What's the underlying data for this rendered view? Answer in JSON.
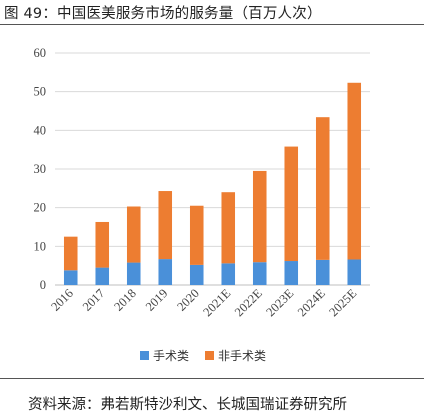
{
  "header": {
    "title": "图 49：中国医美服务市场的服务量（百万人次）"
  },
  "footer": {
    "source": "资料来源：弗若斯特沙利文、长城国瑞证券研究所"
  },
  "chart_data": {
    "type": "bar",
    "stacked": true,
    "title": "",
    "xlabel": "",
    "ylabel": "",
    "ylim": [
      0,
      60
    ],
    "yticks": [
      0,
      10,
      20,
      30,
      40,
      50,
      60
    ],
    "grid": true,
    "legend_position": "bottom",
    "categories": [
      "2016",
      "2017",
      "2018",
      "2019",
      "2020",
      "2021E",
      "2022E",
      "2023E",
      "2024E",
      "2025E"
    ],
    "series": [
      {
        "name": "手术类",
        "color": "#4a90d9",
        "values": [
          3.8,
          4.5,
          5.8,
          6.7,
          5.2,
          5.6,
          5.9,
          6.2,
          6.5,
          6.6
        ]
      },
      {
        "name": "非手术类",
        "color": "#ed7d31",
        "values": [
          8.7,
          11.8,
          14.5,
          17.6,
          15.3,
          18.4,
          23.6,
          29.6,
          36.9,
          45.7
        ]
      }
    ]
  }
}
